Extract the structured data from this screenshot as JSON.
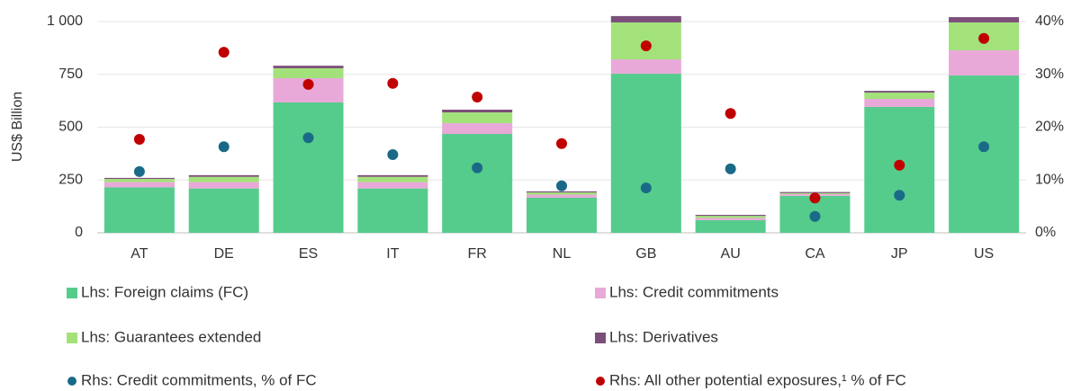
{
  "chart_data": {
    "type": "bar",
    "stacked": true,
    "y_label": "US$ Billion",
    "categories": [
      "AT",
      "DE",
      "ES",
      "IT",
      "FR",
      "NL",
      "GB",
      "AU",
      "CA",
      "JP",
      "US"
    ],
    "ylim": [
      0,
      1000
    ],
    "yticks": [
      0,
      250,
      500,
      750,
      {
        "value": 1000,
        "label": "1 000"
      }
    ],
    "y2lim": [
      0,
      40
    ],
    "y2ticks": [
      {
        "value": 0,
        "label": "0%"
      },
      {
        "value": 10,
        "label": "10%"
      },
      {
        "value": 20,
        "label": "20%"
      },
      {
        "value": 30,
        "label": "30%"
      },
      {
        "value": 40,
        "label": "40%"
      }
    ],
    "grid": true,
    "legend": "bottom",
    "series": [
      {
        "name": "Lhs: Foreign claims (FC)",
        "type": "bar",
        "color": "#55cc8c",
        "values": [
          215,
          210,
          617,
          210,
          468,
          166,
          753,
          60,
          175,
          596,
          745
        ]
      },
      {
        "name": "Lhs: Credit commitments",
        "type": "bar",
        "color": "#e8a9d8",
        "values": [
          25,
          30,
          115,
          30,
          51,
          15,
          68,
          10,
          8,
          38,
          119
        ]
      },
      {
        "name": "Lhs: Guarantees extended",
        "type": "bar",
        "color": "#a3e27a",
        "values": [
          15,
          25,
          47,
          25,
          51,
          10,
          175,
          10,
          5,
          30,
          132
        ]
      },
      {
        "name": "Lhs: Derivatives",
        "type": "bar",
        "color": "#7b4f79",
        "values": [
          5,
          8,
          12,
          8,
          13,
          5,
          30,
          5,
          5,
          8,
          25
        ]
      },
      {
        "name": "Rhs: Credit commitments, % of FC",
        "type": "scatter",
        "axis": "y2",
        "color": "#1a6a87",
        "values": [
          11.6,
          16.3,
          18.0,
          14.8,
          12.3,
          8.9,
          8.5,
          12.1,
          3.1,
          7.1,
          16.3
        ]
      },
      {
        "name": "Rhs: All other potential exposures,¹ % of FC",
        "type": "scatter",
        "axis": "y2",
        "color": "#c00000",
        "values": [
          17.7,
          34.2,
          28.1,
          28.3,
          25.7,
          16.9,
          35.4,
          22.6,
          6.6,
          12.8,
          36.8
        ]
      }
    ]
  }
}
